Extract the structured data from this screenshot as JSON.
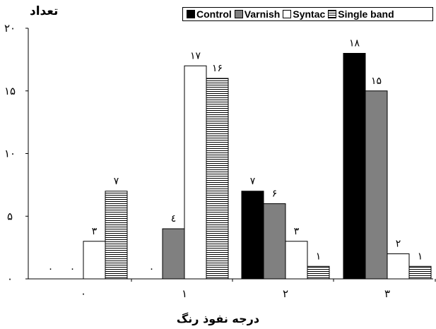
{
  "chart_data": {
    "type": "bar",
    "ylabel": "تعداد",
    "xlabel": "درجه نفوذ رنگ",
    "categories": [
      "۰",
      "۱",
      "۲",
      "۳"
    ],
    "ylim": [
      0,
      20
    ],
    "yticks": [
      {
        "value": 0,
        "label": "۰"
      },
      {
        "value": 5,
        "label": "۵"
      },
      {
        "value": 10,
        "label": "۱۰"
      },
      {
        "value": 15,
        "label": "۱۵"
      },
      {
        "value": 20,
        "label": "۲۰"
      }
    ],
    "legend_position": "top-right",
    "series": [
      {
        "name": "Control",
        "fill": "#000000",
        "pattern": "solid",
        "values": [
          0,
          0,
          7,
          18
        ],
        "labels": [
          "۰",
          "۰",
          "۷",
          "۱۸"
        ]
      },
      {
        "name": "Varnish",
        "fill": "#808080",
        "pattern": "solid",
        "values": [
          0,
          4,
          6,
          15
        ],
        "labels": [
          "۰",
          "٤",
          "۶",
          "۱۵"
        ]
      },
      {
        "name": "Syntac",
        "fill": "#ffffff",
        "pattern": "solid",
        "values": [
          3,
          17,
          3,
          2
        ],
        "labels": [
          "۳",
          "۱۷",
          "۳",
          "۲"
        ]
      },
      {
        "name": "Single band",
        "fill": "#ffffff",
        "pattern": "horizontal-lines",
        "values": [
          7,
          16,
          1,
          1
        ],
        "labels": [
          "۷",
          "۱۶",
          "۱",
          "۱"
        ]
      }
    ]
  }
}
